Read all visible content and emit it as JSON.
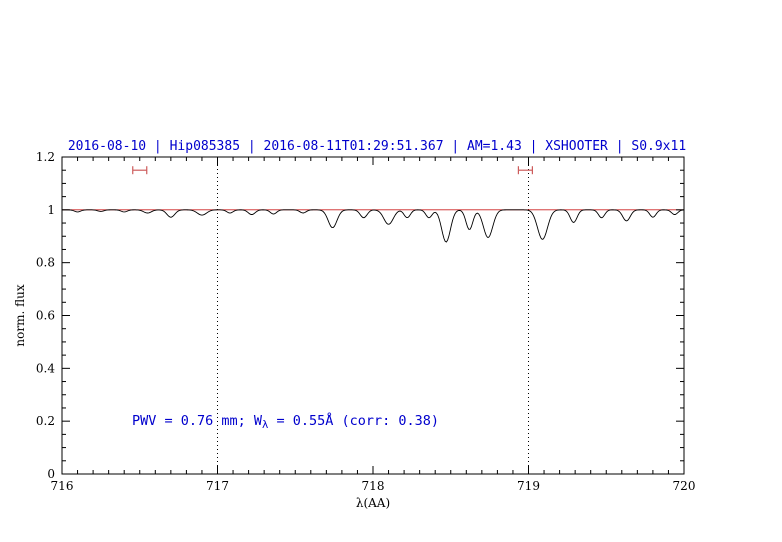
{
  "title": "2016-08-10 | Hip085385 | 2016-08-11T01:29:51.367 | AM=1.43 | XSHOOTER | S0.9x11",
  "colors": {
    "title": "#0000cd",
    "annotation": "#0000cd",
    "continuum_line": "#cc2222",
    "marker_bars": "#cd5c5c",
    "spectrum": "#000000",
    "axes": "#000000"
  },
  "chart_data": {
    "type": "line",
    "title": "2016-08-10 | Hip085385 | 2016-08-11T01:29:51.367 | AM=1.43 | XSHOOTER | S0.9x11",
    "xlabel": "λ(AA)",
    "ylabel": "norm. flux",
    "xlim": [
      716,
      720
    ],
    "ylim": [
      0,
      1.2
    ],
    "x_ticks": [
      716,
      717,
      718,
      719,
      720
    ],
    "y_ticks": [
      0,
      0.2,
      0.4,
      0.6,
      0.8,
      1,
      1.2
    ],
    "x_minor_step": 0.1,
    "y_minor_step": 0.05,
    "grid": "off",
    "legend": "none",
    "dotted_vlines": [
      717,
      719
    ],
    "continuum_y": 1.0,
    "marker_bars": [
      {
        "x_center": 716.5,
        "half_width": 0.045,
        "y": 1.15
      },
      {
        "x_center": 718.98,
        "half_width": 0.045,
        "y": 1.15
      }
    ],
    "annotation": {
      "pre": "PWV = 0.76 mm; W",
      "sub": "λ",
      "post": " = 0.55Å (corr: 0.38)",
      "x": 716.45,
      "y": 0.2
    },
    "sampling_step": 0.008,
    "absorption_lines": [
      [
        716.1,
        0.008,
        0.02
      ],
      [
        716.25,
        0.006,
        0.02
      ],
      [
        716.4,
        0.008,
        0.02
      ],
      [
        716.55,
        0.012,
        0.025
      ],
      [
        716.7,
        0.028,
        0.025
      ],
      [
        716.9,
        0.02,
        0.03
      ],
      [
        717.08,
        0.012,
        0.02
      ],
      [
        717.22,
        0.018,
        0.022
      ],
      [
        717.36,
        0.016,
        0.02
      ],
      [
        717.55,
        0.012,
        0.02
      ],
      [
        717.74,
        0.068,
        0.028
      ],
      [
        717.94,
        0.03,
        0.022
      ],
      [
        718.1,
        0.055,
        0.03
      ],
      [
        718.22,
        0.03,
        0.02
      ],
      [
        718.36,
        0.03,
        0.02
      ],
      [
        718.47,
        0.122,
        0.028
      ],
      [
        718.62,
        0.075,
        0.022
      ],
      [
        718.74,
        0.105,
        0.03
      ],
      [
        719.09,
        0.112,
        0.032
      ],
      [
        719.29,
        0.048,
        0.022
      ],
      [
        719.47,
        0.03,
        0.02
      ],
      [
        719.63,
        0.042,
        0.024
      ],
      [
        719.8,
        0.028,
        0.02
      ],
      [
        719.94,
        0.018,
        0.02
      ]
    ]
  }
}
